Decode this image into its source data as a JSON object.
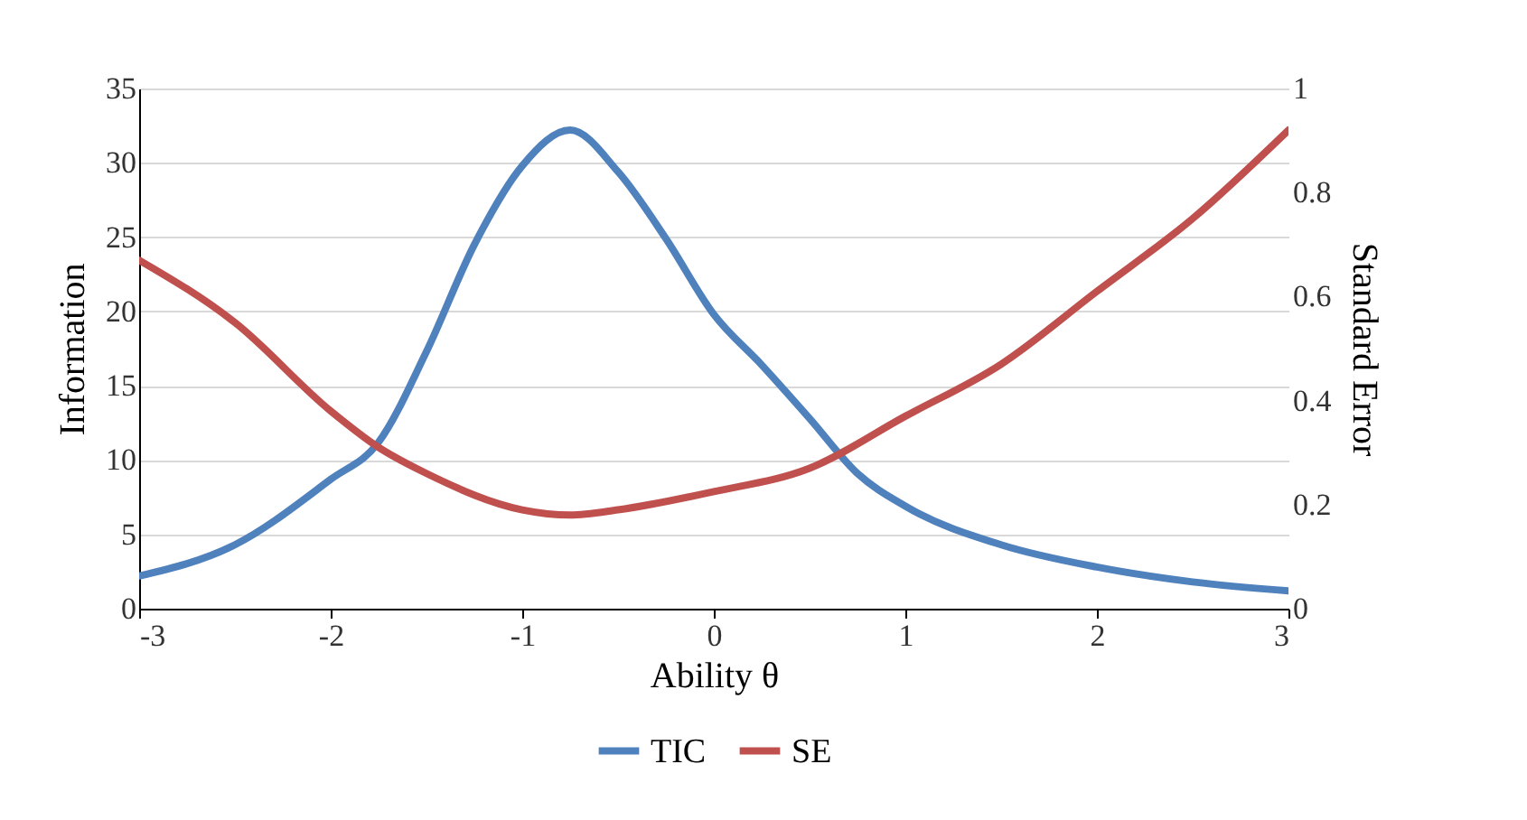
{
  "chart_data": {
    "type": "line",
    "xlabel": "Ability θ",
    "ylabel": "Information",
    "y2label": "Standard Error",
    "xlim": [
      -3,
      3
    ],
    "xticks": [
      -3,
      -2,
      -1,
      0,
      1,
      2,
      3
    ],
    "ylim": [
      0,
      35
    ],
    "yticks": [
      0,
      5,
      10,
      15,
      20,
      25,
      30,
      35
    ],
    "y2lim": [
      0,
      1
    ],
    "y2ticks": [
      0,
      0.2,
      0.4,
      0.6,
      0.8,
      1
    ],
    "grid": "y",
    "legend": "bottom",
    "marker": "none",
    "line_style": "solid",
    "series": [
      {
        "name": "TIC",
        "color": "#4f81bd",
        "x": [
          -3,
          -2.5,
          -2,
          -1.75,
          -1.5,
          -1.25,
          -1,
          -0.75,
          -0.5,
          -0.25,
          0,
          0.25,
          0.5,
          0.75,
          1,
          1.5,
          2,
          2.5,
          3
        ],
        "values": [
          2.2,
          4.3,
          8.7,
          11.2,
          17.3,
          24.5,
          29.8,
          32.2,
          29.4,
          24.9,
          19.8,
          16.4,
          12.8,
          9.1,
          6.9,
          4.3,
          2.8,
          1.8,
          1.2
        ]
      },
      {
        "name": "SE",
        "color": "#c0504d",
        "axis": "y2",
        "x": [
          -3,
          -2.5,
          -2,
          -1.75,
          -1.5,
          -1,
          -0.75,
          -0.5,
          0,
          0.5,
          1,
          1.5,
          2,
          2.5,
          3
        ],
        "values": [
          0.67,
          0.55,
          0.38,
          0.31,
          0.26,
          0.19,
          0.18,
          0.19,
          0.225,
          0.27,
          0.37,
          0.47,
          0.61,
          0.75,
          0.92
        ]
      }
    ]
  }
}
